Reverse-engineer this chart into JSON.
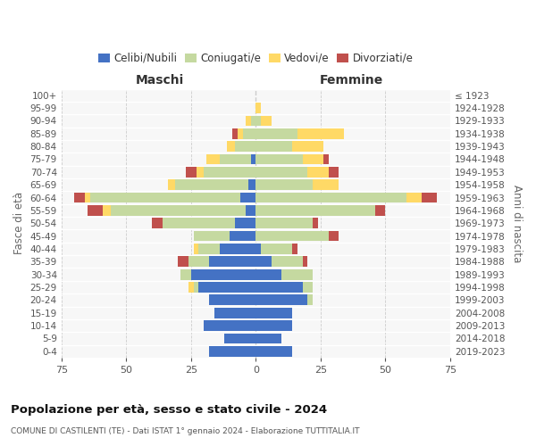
{
  "age_groups": [
    "0-4",
    "5-9",
    "10-14",
    "15-19",
    "20-24",
    "25-29",
    "30-34",
    "35-39",
    "40-44",
    "45-49",
    "50-54",
    "55-59",
    "60-64",
    "65-69",
    "70-74",
    "75-79",
    "80-84",
    "85-89",
    "90-94",
    "95-99",
    "100+"
  ],
  "birth_years": [
    "2019-2023",
    "2014-2018",
    "2009-2013",
    "2004-2008",
    "1999-2003",
    "1994-1998",
    "1989-1993",
    "1984-1988",
    "1979-1983",
    "1974-1978",
    "1969-1973",
    "1964-1968",
    "1959-1963",
    "1954-1958",
    "1949-1953",
    "1944-1948",
    "1939-1943",
    "1934-1938",
    "1929-1933",
    "1924-1928",
    "≤ 1923"
  ],
  "male": {
    "celibe": [
      18,
      12,
      20,
      16,
      18,
      22,
      25,
      18,
      14,
      10,
      8,
      4,
      6,
      3,
      0,
      2,
      0,
      0,
      0,
      0,
      0
    ],
    "coniugato": [
      0,
      0,
      0,
      0,
      0,
      2,
      4,
      8,
      8,
      14,
      28,
      52,
      58,
      28,
      20,
      12,
      8,
      5,
      2,
      0,
      0
    ],
    "vedovo": [
      0,
      0,
      0,
      0,
      0,
      2,
      0,
      0,
      2,
      0,
      0,
      3,
      2,
      3,
      3,
      5,
      3,
      2,
      2,
      0,
      0
    ],
    "divorziato": [
      0,
      0,
      0,
      0,
      0,
      0,
      0,
      4,
      0,
      0,
      4,
      6,
      4,
      0,
      4,
      0,
      0,
      2,
      0,
      0,
      0
    ]
  },
  "female": {
    "nubile": [
      14,
      10,
      14,
      14,
      20,
      18,
      10,
      6,
      2,
      0,
      0,
      0,
      0,
      0,
      0,
      0,
      0,
      0,
      0,
      0,
      0
    ],
    "coniugata": [
      0,
      0,
      0,
      0,
      2,
      4,
      12,
      12,
      12,
      28,
      22,
      46,
      58,
      22,
      20,
      18,
      14,
      16,
      2,
      0,
      0
    ],
    "vedova": [
      0,
      0,
      0,
      0,
      0,
      0,
      0,
      0,
      0,
      0,
      0,
      0,
      6,
      10,
      8,
      8,
      12,
      18,
      4,
      2,
      0
    ],
    "divorziata": [
      0,
      0,
      0,
      0,
      0,
      0,
      0,
      2,
      2,
      4,
      2,
      4,
      6,
      0,
      4,
      2,
      0,
      0,
      0,
      0,
      0
    ]
  },
  "colors": {
    "celibe_nubile": "#4472C4",
    "coniugato_a": "#C5D9A0",
    "vedovo_a": "#FFD966",
    "divorziato_a": "#C0504D"
  },
  "xlim": 75,
  "xticks": [
    -75,
    -50,
    -25,
    0,
    25,
    50,
    75
  ],
  "title": "Popolazione per età, sesso e stato civile - 2024",
  "subtitle": "COMUNE DI CASTILENTI (TE) - Dati ISTAT 1° gennaio 2024 - Elaborazione TUTTITALIA.IT",
  "ylabel_left": "Fasce di età",
  "ylabel_right": "Anni di nascita",
  "xlabel_male": "Maschi",
  "xlabel_female": "Femmine",
  "legend_labels": [
    "Celibi/Nubili",
    "Coniugati/e",
    "Vedovi/e",
    "Divorziati/e"
  ],
  "bg_color": "#ffffff",
  "plot_bg": "#f7f7f7",
  "grid_color": "#cccccc",
  "bar_height": 0.82
}
